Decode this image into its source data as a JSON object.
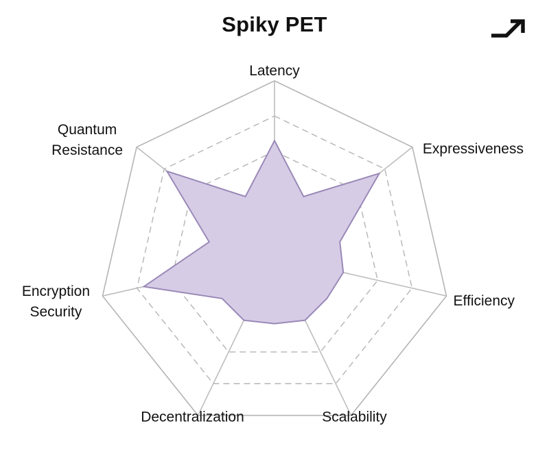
{
  "title": "Spiky PET",
  "expand_icon": "diagonal-arrow-icon",
  "chart_data": {
    "type": "radar",
    "title": "Spiky PET",
    "axes": [
      "Latency",
      "Expressiveness",
      "Efficiency",
      "Scalability",
      "Decentralization",
      "Encryption Security",
      "Quantum Resistance"
    ],
    "axis_label_lines": [
      [
        "Latency"
      ],
      [
        "Expressiveness"
      ],
      [
        "Efficiency"
      ],
      [
        "Scalability"
      ],
      [
        "Decentralization"
      ],
      [
        "Encryption",
        "Security"
      ],
      [
        "Quantum",
        "Resistance"
      ]
    ],
    "range": [
      0,
      5
    ],
    "levels": 5,
    "values": [
      3.3,
      3.8,
      2.0,
      2.0,
      2.0,
      3.8,
      3.9
    ],
    "inner_values": [
      1.9,
      1.9,
      1.9,
      1.9,
      1.9,
      1.9,
      1.9
    ],
    "colors": {
      "fill": "#d6cce6",
      "stroke": "#9a89b7",
      "grid": "#b4b4b4",
      "spoke": "#bdbdbd"
    }
  }
}
